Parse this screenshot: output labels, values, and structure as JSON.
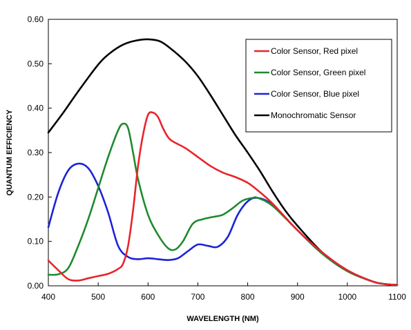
{
  "chart_data": {
    "type": "line",
    "title": "",
    "xlabel": "WAVELENGTH (NM)",
    "ylabel": "QUANTUM EFFICIENCY",
    "xlim": [
      400,
      1100
    ],
    "ylim": [
      0,
      0.6
    ],
    "x_ticks": [
      400,
      500,
      600,
      700,
      800,
      900,
      1000,
      1100
    ],
    "y_ticks": [
      0,
      0.1,
      0.2,
      0.3,
      0.4,
      0.5,
      0.6
    ],
    "x_tick_labels": [
      "400",
      "500",
      "600",
      "700",
      "800",
      "900",
      "1000",
      "1100"
    ],
    "y_tick_labels": [
      "0.00",
      "0.10",
      "0.20",
      "0.30",
      "0.40",
      "0.50",
      "0.60"
    ],
    "grid": false,
    "legend_position": "top-right",
    "series": [
      {
        "name": "Color Sensor, Red pixel",
        "color": "#e8242b",
        "x": [
          400,
          420,
          440,
          460,
          480,
          500,
          520,
          540,
          550,
          560,
          570,
          580,
          590,
          600,
          610,
          620,
          630,
          640,
          650,
          675,
          700,
          725,
          750,
          775,
          800,
          820,
          850,
          900,
          950,
          1000,
          1050,
          1075,
          1100
        ],
        "y": [
          0.057,
          0.035,
          0.015,
          0.012,
          0.017,
          0.022,
          0.027,
          0.038,
          0.05,
          0.09,
          0.17,
          0.27,
          0.34,
          0.385,
          0.39,
          0.38,
          0.355,
          0.335,
          0.325,
          0.31,
          0.29,
          0.27,
          0.255,
          0.245,
          0.232,
          0.215,
          0.185,
          0.125,
          0.075,
          0.035,
          0.01,
          0.004,
          0.002
        ]
      },
      {
        "name": "Color Sensor, Green pixel",
        "color": "#1e8a2e",
        "x": [
          400,
          420,
          440,
          460,
          480,
          500,
          520,
          540,
          550,
          560,
          570,
          580,
          600,
          620,
          640,
          655,
          670,
          690,
          710,
          730,
          750,
          770,
          790,
          810,
          820,
          850,
          900,
          950,
          1000,
          1050,
          1075,
          1100
        ],
        "y": [
          0.025,
          0.026,
          0.04,
          0.09,
          0.15,
          0.22,
          0.29,
          0.35,
          0.365,
          0.355,
          0.3,
          0.24,
          0.16,
          0.115,
          0.085,
          0.082,
          0.1,
          0.14,
          0.15,
          0.155,
          0.16,
          0.175,
          0.192,
          0.198,
          0.198,
          0.18,
          0.125,
          0.072,
          0.033,
          0.01,
          0.004,
          0.002
        ]
      },
      {
        "name": "Color Sensor, Blue pixel",
        "color": "#1c22d6",
        "x": [
          400,
          420,
          440,
          460,
          480,
          500,
          520,
          540,
          560,
          580,
          600,
          620,
          640,
          660,
          680,
          700,
          720,
          740,
          760,
          780,
          800,
          820,
          850,
          900,
          950,
          1000,
          1050,
          1075,
          1100
        ],
        "y": [
          0.132,
          0.21,
          0.26,
          0.275,
          0.265,
          0.225,
          0.165,
          0.09,
          0.065,
          0.06,
          0.062,
          0.06,
          0.058,
          0.062,
          0.078,
          0.093,
          0.09,
          0.088,
          0.11,
          0.16,
          0.19,
          0.198,
          0.182,
          0.125,
          0.072,
          0.033,
          0.01,
          0.004,
          0.002
        ]
      },
      {
        "name": "Monochromatic Sensor",
        "color": "#000000",
        "x": [
          400,
          430,
          460,
          500,
          525,
          550,
          575,
          600,
          625,
          650,
          675,
          700,
          725,
          750,
          775,
          800,
          825,
          850,
          875,
          900,
          950,
          1000,
          1050,
          1075,
          1100
        ],
        "y": [
          0.345,
          0.39,
          0.438,
          0.498,
          0.525,
          0.543,
          0.552,
          0.555,
          0.55,
          0.53,
          0.505,
          0.472,
          0.43,
          0.385,
          0.34,
          0.3,
          0.258,
          0.212,
          0.17,
          0.135,
          0.075,
          0.035,
          0.01,
          0.004,
          0.002
        ]
      }
    ]
  }
}
